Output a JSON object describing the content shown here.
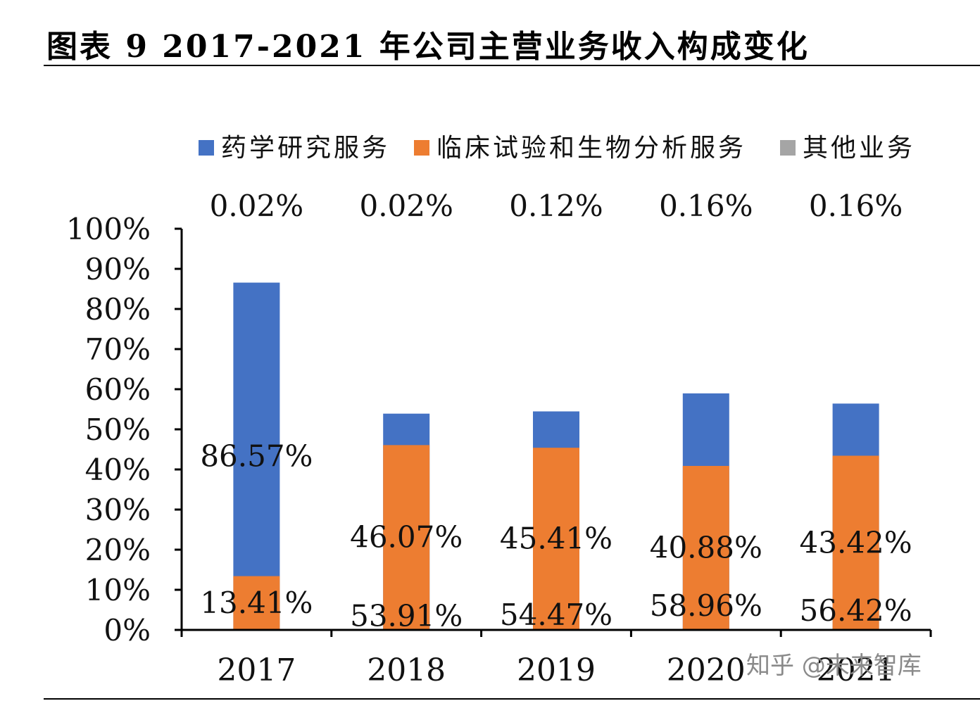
{
  "figure_title": "图表 9 2017-2021 年公司主营业务收入构成变化",
  "watermark": "知乎 @未来智库",
  "chart_data": {
    "type": "bar",
    "stacked": true,
    "categories": [
      "2017",
      "2018",
      "2019",
      "2020",
      "2021"
    ],
    "series": [
      {
        "name": "药学研究服务",
        "color": "#4472C4",
        "values": [
          86.57,
          53.91,
          54.47,
          58.96,
          56.42
        ],
        "labels": [
          "86.57%",
          "53.91%",
          "54.47%",
          "58.96%",
          "56.42%"
        ]
      },
      {
        "name": "临床试验和生物分析服务",
        "color": "#ED7D31",
        "values": [
          13.41,
          46.07,
          45.41,
          40.88,
          43.42
        ],
        "labels": [
          "13.41%",
          "46.07%",
          "45.41%",
          "40.88%",
          "43.42%"
        ]
      },
      {
        "name": "其他业务",
        "color": "#A5A5A5",
        "values": [
          0.02,
          0.02,
          0.12,
          0.16,
          0.16
        ],
        "labels": [
          "0.02%",
          "0.02%",
          "0.12%",
          "0.16%",
          "0.16%"
        ]
      }
    ],
    "yticks": [
      "0%",
      "10%",
      "20%",
      "30%",
      "40%",
      "50%",
      "60%",
      "70%",
      "80%",
      "90%",
      "100%"
    ],
    "ylim": [
      0,
      100
    ],
    "grid": false,
    "legend_position": "top"
  }
}
